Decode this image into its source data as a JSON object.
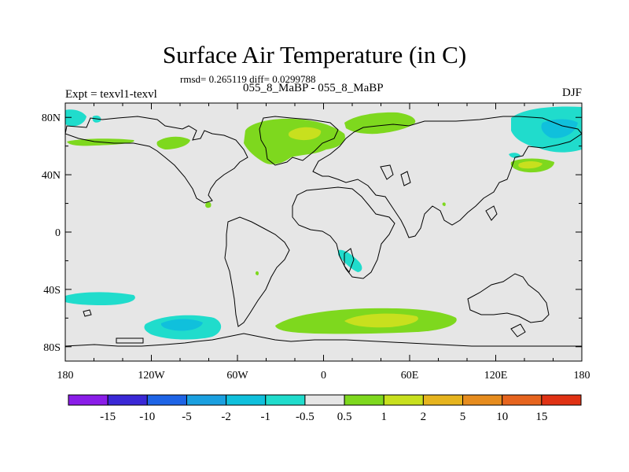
{
  "chart_data": {
    "type": "contour-map",
    "title": "Surface Air Temperature (in C)",
    "stats": "rmsd= 0.265119 diff= 0.0299788",
    "subtitle": "055_8_MaBP - 055_8_MaBP",
    "left_label": "Expt = texvl1-texvl",
    "right_label": "DJF",
    "x_ticks": [
      "180",
      "120W",
      "60W",
      "0",
      "60E",
      "120E",
      "180"
    ],
    "y_ticks": [
      "80N",
      "40N",
      "0",
      "40S",
      "80S"
    ],
    "xlim": [
      -180,
      180
    ],
    "ylim": [
      -90,
      90
    ],
    "colorbar": {
      "labels": [
        "-15",
        "-10",
        "-5",
        "-2",
        "-1",
        "-0.5",
        "0.5",
        "1",
        "2",
        "5",
        "10",
        "15"
      ],
      "colors": [
        "#8a1de8",
        "#3a28d6",
        "#1e64e6",
        "#1aa0e0",
        "#10c0dc",
        "#20dccc",
        "#e6e6e6",
        "#7ed81e",
        "#c8e01e",
        "#e6b41e",
        "#e68c1e",
        "#e6641e",
        "#e03214"
      ]
    },
    "background_color": "#e6e6e6"
  }
}
